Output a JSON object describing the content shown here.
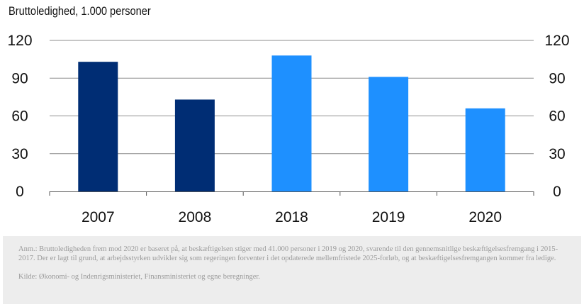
{
  "title": "Bruttoledighed, 1.000 personer",
  "chart_data": {
    "type": "bar",
    "categories": [
      "2007",
      "2008",
      "2018",
      "2019",
      "2020"
    ],
    "values": [
      103,
      73,
      108,
      91,
      66
    ],
    "bar_colors": [
      "#002d74",
      "#002d74",
      "#1e90ff",
      "#1e90ff",
      "#1e90ff"
    ],
    "ylim": [
      0,
      120
    ],
    "yticks": [
      0,
      30,
      60,
      90,
      120
    ],
    "ytick_labels": [
      "0",
      "30",
      "60",
      "90",
      "120"
    ],
    "secondary_y_axis": true,
    "grid": true
  },
  "note": {
    "text": "Anm.: Bruttoledigheden frem mod 2020 er baseret på, at beskæftigelsen stiger med 41.000 personer i 2019 og 2020, svarende til den gennemsnitlige beskæftigelsesfremgang i 2015-2017. Der er lagt til grund, at arbejdsstyrken udvikler sig som regeringen forventer i det opdaterede mellemfristede 2025-forløb, og at beskæftigelsesfremgangen kommer fra ledige.",
    "source": "Kilde: Økonomi- og Indenrigsministeriet, Finansministeriet og egne beregninger."
  }
}
